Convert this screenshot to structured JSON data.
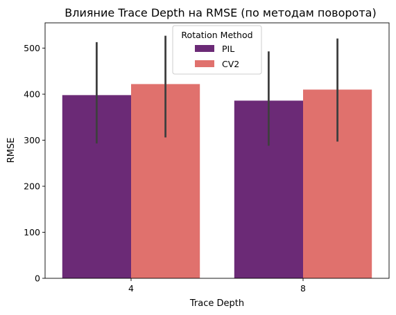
{
  "chart_data": {
    "type": "bar",
    "title": "Влияние Trace Depth на RMSE (по методам поворота)",
    "xlabel": "Trace Depth",
    "ylabel": "RMSE",
    "categories": [
      "4",
      "8"
    ],
    "ylim": [
      0,
      555
    ],
    "yticks": [
      0,
      100,
      200,
      300,
      400,
      500
    ],
    "legend": {
      "title": "Rotation Method",
      "placement": "upper center"
    },
    "grid": false,
    "series": [
      {
        "name": "PIL",
        "color": "#6b2a76",
        "values": [
          398,
          386
        ],
        "error_low": [
          293,
          288
        ],
        "error_high": [
          513,
          493
        ]
      },
      {
        "name": "CV2",
        "color": "#e0716d",
        "values": [
          422,
          410
        ],
        "error_low": [
          306,
          297
        ],
        "error_high": [
          527,
          521
        ]
      }
    ],
    "error_bar_color": "#3f3f3f"
  }
}
